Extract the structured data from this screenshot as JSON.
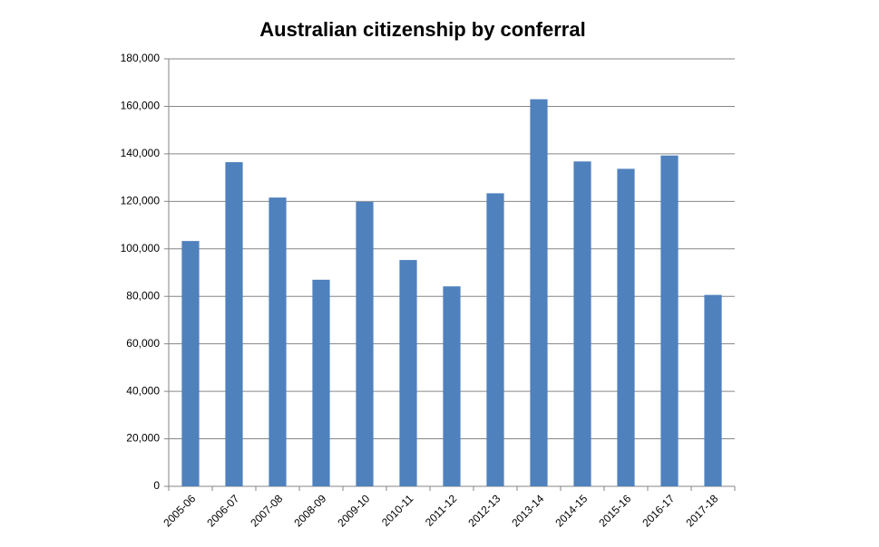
{
  "chart_data": {
    "type": "bar",
    "title": "Australian citizenship by conferral",
    "categories": [
      "2005-06",
      "2006-07",
      "2007-08",
      "2008-09",
      "2009-10",
      "2010-11",
      "2011-12",
      "2012-13",
      "2013-14",
      "2014-15",
      "2015-16",
      "2016-17",
      "2017-18"
    ],
    "values": [
      103300,
      136500,
      121600,
      87000,
      119800,
      95300,
      84200,
      123400,
      163000,
      136800,
      133700,
      139300,
      80600
    ],
    "color": "#4f81bd",
    "ylim": [
      0,
      180000
    ],
    "yticks": [
      0,
      {
        "value": 20000,
        "label": "20,000"
      },
      {
        "value": 40000,
        "label": "40,000"
      },
      {
        "value": 60000,
        "label": "60,000"
      },
      {
        "value": 80000,
        "label": "80,000"
      },
      {
        "value": 100000,
        "label": "100,000"
      },
      {
        "value": 120000,
        "label": "120,000"
      },
      {
        "value": 140000,
        "label": "140,000"
      },
      {
        "value": 160000,
        "label": "160,000"
      },
      {
        "value": 180000,
        "label": "180,000"
      }
    ],
    "grid": true
  }
}
